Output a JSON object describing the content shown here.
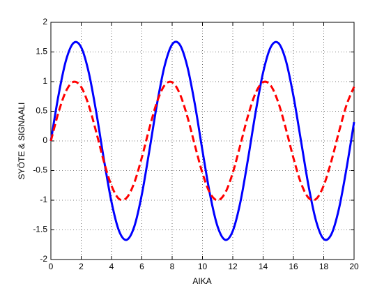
{
  "chart_data": {
    "type": "line",
    "xlabel": "AIKA",
    "ylabel": "SYÖTE & SIGNAALI",
    "x": [
      0,
      0.5,
      1,
      1.5,
      2,
      2.5,
      3,
      3.5,
      4,
      4.5,
      5,
      5.5,
      6,
      6.5,
      7,
      7.5,
      8,
      8.5,
      9,
      9.5,
      10,
      10.5,
      11,
      11.5,
      12,
      12.5,
      13,
      13.5,
      14,
      14.5,
      15,
      15.5,
      16,
      16.5,
      17,
      17.5,
      18,
      18.5,
      19,
      19.5,
      20
    ],
    "series": [
      {
        "color": "#0000ff",
        "linestyle": "solid",
        "values": [
          0,
          0.765,
          1.361,
          1.653,
          1.578,
          1.152,
          0.473,
          -0.316,
          -1.03,
          -1.52,
          -1.668,
          -1.446,
          -0.903,
          -0.159,
          0.621,
          1.263,
          1.627,
          1.625,
          1.256,
          0.616,
          -0.164,
          -0.907,
          -1.446,
          -1.668,
          -1.518,
          -1.032,
          -0.312,
          0.474,
          1.154,
          1.58,
          1.653,
          1.356,
          0.758,
          0,
          -0.762,
          -1.356,
          -1.655,
          -1.576,
          -1.147,
          -0.468,
          0.317
        ]
      },
      {
        "color": "#ff0000",
        "linestyle": "dashed",
        "values": [
          0,
          0.479,
          0.841,
          0.997,
          0.909,
          0.598,
          0.141,
          -0.351,
          -0.757,
          -0.978,
          -0.959,
          -0.706,
          -0.279,
          0.215,
          0.657,
          0.938,
          0.989,
          0.798,
          0.412,
          -0.075,
          -0.544,
          -0.88,
          -1.0,
          -0.875,
          -0.537,
          -0.066,
          0.42,
          0.804,
          0.991,
          0.935,
          0.65,
          0.207,
          -0.288,
          -0.712,
          -0.961,
          -0.978,
          -0.751,
          -0.342,
          0.15,
          0.603,
          0.913
        ]
      }
    ],
    "xlim": [
      0,
      20
    ],
    "xticks": [
      0,
      2,
      4,
      6,
      8,
      10,
      12,
      14,
      16,
      18,
      20
    ],
    "ylim": [
      -2,
      2
    ],
    "yticks": [
      -2,
      -1.5,
      -1,
      -0.5,
      0,
      0.5,
      1,
      1.5,
      2
    ],
    "grid": true
  }
}
